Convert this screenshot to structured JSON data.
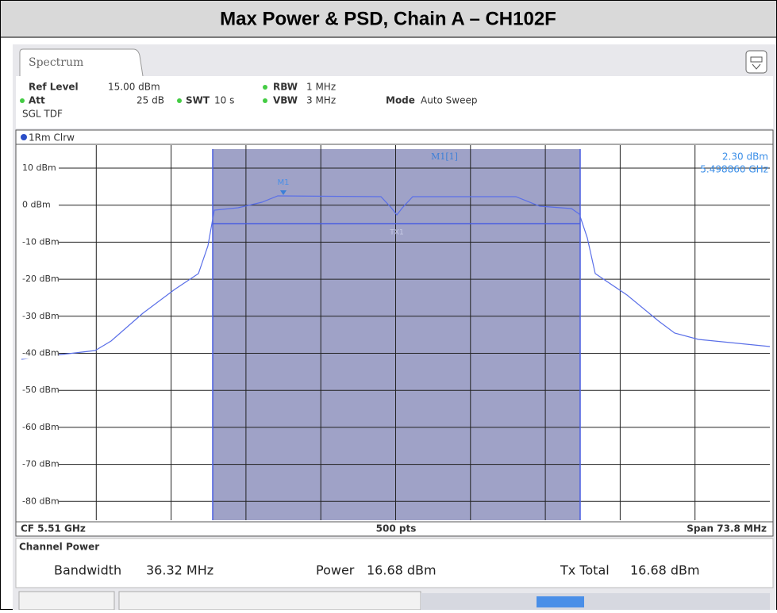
{
  "title": "Max Power & PSD, Chain A – CH102F",
  "tab": "Spectrum",
  "settings": {
    "ref_level_label": "Ref Level",
    "ref_level_value": "15.00 dBm",
    "att_label": "Att",
    "att_value": "25 dB",
    "swt_label": "SWT",
    "swt_value": "10 s",
    "rbw_label": "RBW",
    "rbw_value": "1 MHz",
    "vbw_label": "VBW",
    "vbw_value": "3 MHz",
    "mode_label": "Mode",
    "mode_value": "Auto Sweep",
    "sgl": "SGL TDF"
  },
  "trace_label": "1Rm Clrw",
  "y_labels": [
    "10 dBm",
    "0 dBm",
    "-10 dBm",
    "-20 dBm",
    "-30 dBm",
    "-40 dBm",
    "-50 dBm",
    "-60 dBm",
    "-70 dBm",
    "-80 dBm"
  ],
  "marker": {
    "name": "M1",
    "readout_name": "M1[1]",
    "level": "2.30 dBm",
    "freq": "5.498860 GHz",
    "channel": "TX1"
  },
  "footer": {
    "cf": "CF 5.51 GHz",
    "pts": "500 pts",
    "span": "Span 73.8 MHz"
  },
  "channel_power": {
    "heading": "Channel Power",
    "bandwidth_label": "Bandwidth",
    "bandwidth_value": "36.32 MHz",
    "power_label": "Power",
    "power_value": "16.68 dBm",
    "tx_total_label": "Tx Total",
    "tx_total_value": "16.68 dBm"
  }
}
